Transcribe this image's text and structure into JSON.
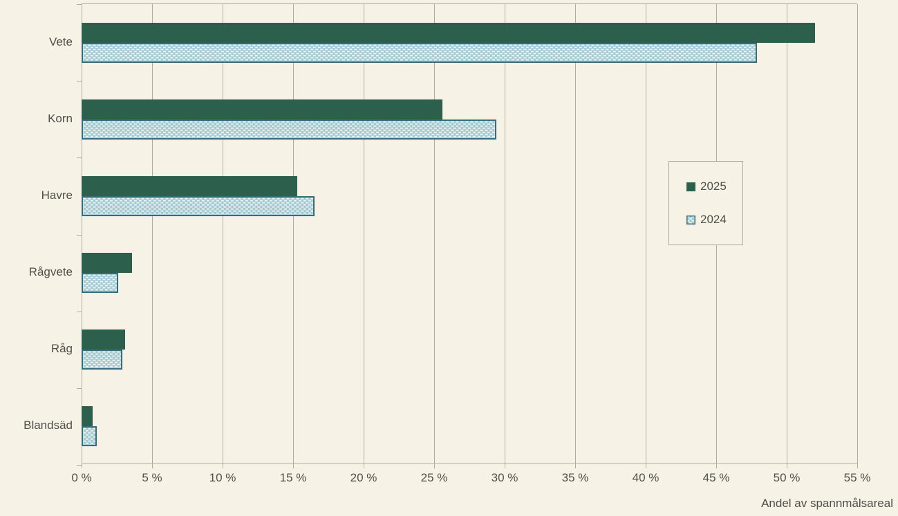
{
  "page": {
    "background_color": "#f6f3e6"
  },
  "chart_data": {
    "type": "bar",
    "orientation": "horizontal",
    "title": "",
    "xlabel": "Andel av spannmålsareal",
    "ylabel": "",
    "xlim": [
      0,
      55
    ],
    "grid": "vertical",
    "legend_position": "center-right",
    "categories": [
      "Vete",
      "Korn",
      "Havre",
      "Rågvete",
      "Råg",
      "Blandsäd"
    ],
    "series": [
      {
        "name": "2025",
        "fill_style": "solid",
        "color": "#2d5f4d",
        "values": [
          52.0,
          25.6,
          15.3,
          3.6,
          3.1,
          0.8
        ]
      },
      {
        "name": "2024",
        "fill_style": "dotted-pattern",
        "color": "#a2cad6",
        "dash_color": "#f3f6ee",
        "border_color": "#336e7a",
        "values": [
          47.9,
          29.4,
          16.5,
          2.6,
          2.9,
          1.1
        ]
      }
    ],
    "x_ticks": [
      {
        "value": 0,
        "label": "0 %"
      },
      {
        "value": 5,
        "label": "5 %"
      },
      {
        "value": 10,
        "label": "10 %"
      },
      {
        "value": 15,
        "label": "15 %"
      },
      {
        "value": 20,
        "label": "20 %"
      },
      {
        "value": 25,
        "label": "25 %"
      },
      {
        "value": 30,
        "label": "30 %"
      },
      {
        "value": 35,
        "label": "35 %"
      },
      {
        "value": 40,
        "label": "40 %"
      },
      {
        "value": 45,
        "label": "45 %"
      },
      {
        "value": 50,
        "label": "50 %"
      },
      {
        "value": 55,
        "label": "55 %"
      }
    ],
    "axis_color": "#aeada4",
    "text_color": "#4f4e49"
  }
}
